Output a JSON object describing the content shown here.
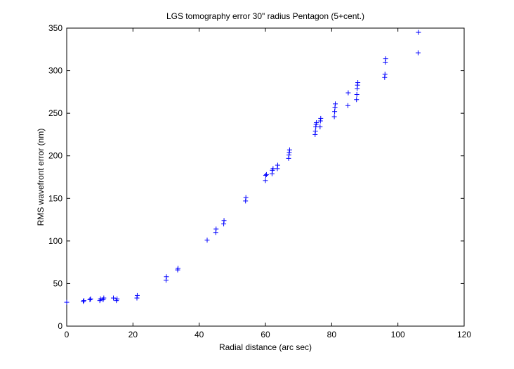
{
  "chart_data": {
    "type": "scatter",
    "title": "LGS tomography error 30\" radius Pentagon (5+cent.)",
    "xlabel": "Radial distance (arc sec)",
    "ylabel": "RMS wavefront error (nm)",
    "xlim": [
      0,
      120
    ],
    "ylim": [
      0,
      350
    ],
    "xticks": [
      0,
      20,
      40,
      60,
      80,
      100,
      120
    ],
    "yticks": [
      0,
      50,
      100,
      150,
      200,
      250,
      300,
      350
    ],
    "grid": false,
    "legend": "none",
    "marker": "+",
    "marker_color": "#0000ff",
    "series": [
      {
        "points": [
          [
            0,
            28
          ],
          [
            5,
            29
          ],
          [
            5.2,
            30
          ],
          [
            7,
            31
          ],
          [
            7.2,
            32
          ],
          [
            10,
            30
          ],
          [
            10.2,
            32
          ],
          [
            11,
            31
          ],
          [
            11.2,
            33
          ],
          [
            14.1,
            33
          ],
          [
            15,
            30
          ],
          [
            15.2,
            32
          ],
          [
            21.2,
            33
          ],
          [
            21.3,
            36
          ],
          [
            30,
            54
          ],
          [
            30.1,
            58
          ],
          [
            33.5,
            66
          ],
          [
            33.6,
            68
          ],
          [
            42.4,
            101
          ],
          [
            45,
            110
          ],
          [
            45.1,
            114
          ],
          [
            47.4,
            120
          ],
          [
            47.5,
            124
          ],
          [
            54,
            147
          ],
          [
            54.1,
            151
          ],
          [
            60,
            171
          ],
          [
            60.1,
            177
          ],
          [
            60.3,
            178
          ],
          [
            62,
            179
          ],
          [
            62.1,
            183
          ],
          [
            62.3,
            185
          ],
          [
            63.6,
            185
          ],
          [
            63.7,
            189
          ],
          [
            67,
            197
          ],
          [
            67.1,
            201
          ],
          [
            67.2,
            204
          ],
          [
            67.3,
            207
          ],
          [
            75,
            225
          ],
          [
            75.1,
            229
          ],
          [
            75.2,
            234
          ],
          [
            75.3,
            237
          ],
          [
            75.4,
            239
          ],
          [
            76.5,
            234
          ],
          [
            76.6,
            241
          ],
          [
            76.7,
            244
          ],
          [
            80.8,
            246
          ],
          [
            80.9,
            252
          ],
          [
            81,
            257
          ],
          [
            81.1,
            261
          ],
          [
            84.9,
            259
          ],
          [
            85,
            274
          ],
          [
            87.5,
            266
          ],
          [
            87.6,
            272
          ],
          [
            87.7,
            279
          ],
          [
            87.8,
            283
          ],
          [
            87.9,
            286
          ],
          [
            96,
            292
          ],
          [
            96.1,
            296
          ],
          [
            96.2,
            310
          ],
          [
            96.3,
            314
          ],
          [
            106.1,
            321
          ],
          [
            106.2,
            345
          ]
        ]
      }
    ]
  }
}
